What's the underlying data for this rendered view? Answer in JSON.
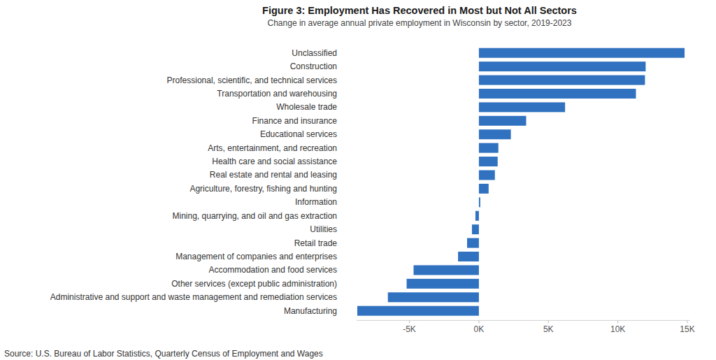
{
  "chart_data": {
    "type": "bar",
    "orientation": "horizontal",
    "title": "Figure 3: Employment Has Recovered in Most but Not All Sectors",
    "subtitle": "Change in average annual private employment in Wisconsin by sector, 2019-2023",
    "source": "Source: U.S. Bureau of Labor Statistics, Quarterly Census of Employment and Wages",
    "categories": [
      "Unclassified",
      "Construction",
      "Professional, scientific, and technical services",
      "Transportation and warehousing",
      "Wholesale trade",
      "Finance and insurance",
      "Educational services",
      "Arts, entertainment, and recreation",
      "Health care and social assistance",
      "Real estate and rental and leasing",
      "Agriculture, forestry, fishing and hunting",
      "Information",
      "Mining, quarrying, and oil and gas extraction",
      "Utilities",
      "Retail trade",
      "Management of companies and enterprises",
      "Accommodation and food services",
      "Other services (except public administration)",
      "Administrative and support and waste management and remediation services",
      "Manufacturing"
    ],
    "values": [
      14800,
      12000,
      11950,
      11300,
      6200,
      3400,
      2300,
      1400,
      1350,
      1150,
      700,
      100,
      -250,
      -500,
      -850,
      -1500,
      -4700,
      -5200,
      -6550,
      -8750
    ],
    "color": "#3072c0",
    "xlim": [
      -8800,
      15200
    ],
    "xticks": [
      {
        "value": -5000,
        "label": "-5K"
      },
      {
        "value": 0,
        "label": "0K"
      },
      {
        "value": 5000,
        "label": "5K"
      },
      {
        "value": 10000,
        "label": "10K"
      },
      {
        "value": 15000,
        "label": "15K"
      }
    ],
    "grid": false
  }
}
